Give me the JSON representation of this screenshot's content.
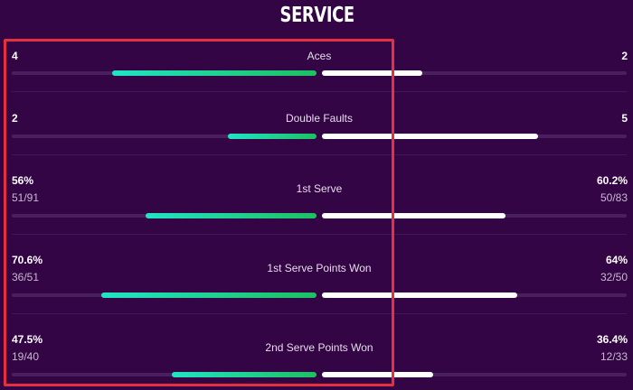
{
  "title": "SERVICE",
  "rows": [
    {
      "label": "Aces",
      "left_value": "4",
      "right_value": "2",
      "left_sub": "",
      "right_sub": "",
      "left_fill": 0.67,
      "right_fill": 0.33
    },
    {
      "label": "Double Faults",
      "left_value": "2",
      "right_value": "5",
      "left_sub": "",
      "right_sub": "",
      "left_fill": 0.29,
      "right_fill": 0.71
    },
    {
      "label": "1st Serve",
      "left_value": "56%",
      "right_value": "60.2%",
      "left_sub": "51/91",
      "right_sub": "50/83",
      "left_fill": 0.56,
      "right_fill": 0.602
    },
    {
      "label": "1st Serve Points Won",
      "left_value": "70.6%",
      "right_value": "64%",
      "left_sub": "36/51",
      "right_sub": "32/50",
      "left_fill": 0.706,
      "right_fill": 0.64
    },
    {
      "label": "2nd Serve Points Won",
      "left_value": "47.5%",
      "right_value": "36.4%",
      "left_sub": "19/40",
      "right_sub": "12/33",
      "left_fill": 0.475,
      "right_fill": 0.364
    }
  ],
  "colors": {
    "background": "#330544",
    "highlight_border": "#e5313f",
    "left_bar": "#1dc062",
    "right_bar": "#ffffff"
  }
}
